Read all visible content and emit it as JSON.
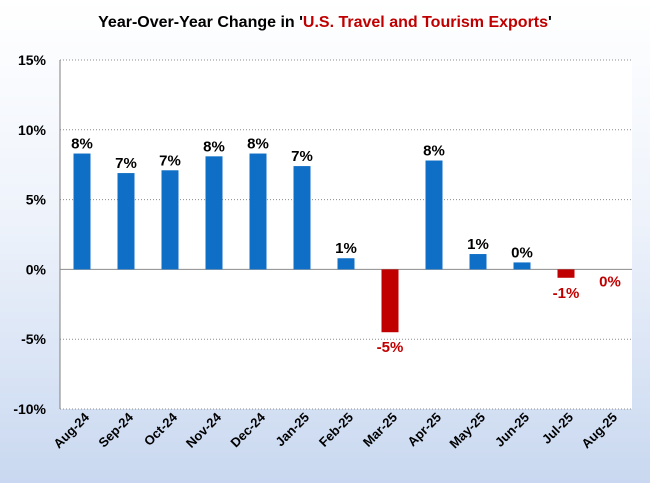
{
  "title": {
    "prefix": "Year-Over-Year Change in '",
    "highlight": "U.S. Travel and Tourism Exports",
    "suffix": "'"
  },
  "colors": {
    "positive": "#0f6fc6",
    "negative": "#c00000",
    "label_positive": "#000000",
    "label_negative": "#c00000",
    "title_highlight": "#c00000",
    "plot_bg": "#ffffff",
    "grid": "#8c8c8c"
  },
  "chart_data": {
    "type": "bar",
    "title": "Year-Over-Year Change in 'U.S. Travel and Tourism Exports'",
    "xlabel": "",
    "ylabel": "",
    "ylim": [
      -10,
      15
    ],
    "yticks": [
      15,
      10,
      5,
      0,
      -5,
      -10
    ],
    "ytick_labels": [
      "15%",
      "10%",
      "5%",
      "0%",
      "-5%",
      "-10%"
    ],
    "grid": true,
    "categories": [
      "Aug-24",
      "Sep-24",
      "Oct-24",
      "Nov-24",
      "Dec-24",
      "Jan-25",
      "Feb-25",
      "Mar-25",
      "Apr-25",
      "May-25",
      "Jun-25",
      "Jul-25",
      "Aug-25"
    ],
    "values": [
      8.3,
      6.9,
      7.1,
      8.1,
      8.3,
      7.4,
      0.8,
      -4.5,
      7.8,
      1.1,
      0.5,
      -0.6,
      0.0
    ],
    "data_labels": [
      "8%",
      "7%",
      "7%",
      "8%",
      "8%",
      "7%",
      "1%",
      "-5%",
      "8%",
      "1%",
      "0%",
      "-1%",
      "0%"
    ]
  }
}
